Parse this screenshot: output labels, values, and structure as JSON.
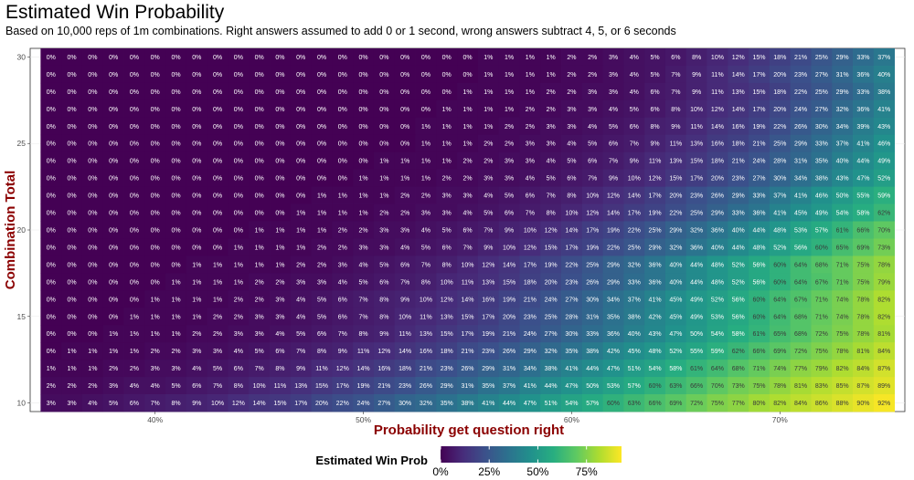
{
  "chart_data": {
    "type": "heatmap",
    "title": "Estimated Win Probability",
    "subtitle": "Based on 10,000 reps of 1m combinations. Right answers assumed to add 0 or 1 second, wrong answers subtract 4, 5, or 6 seconds",
    "xlabel": "Probability get question right",
    "ylabel": "Combination Total",
    "x": [
      0.35,
      0.36,
      0.37,
      0.38,
      0.39,
      0.4,
      0.41,
      0.42,
      0.43,
      0.44,
      0.45,
      0.46,
      0.47,
      0.48,
      0.49,
      0.5,
      0.51,
      0.52,
      0.53,
      0.54,
      0.55,
      0.56,
      0.57,
      0.58,
      0.59,
      0.6,
      0.61,
      0.62,
      0.63,
      0.64,
      0.65,
      0.66,
      0.67,
      0.68,
      0.69,
      0.7,
      0.71,
      0.72,
      0.73,
      0.74,
      0.75
    ],
    "y": [
      30,
      29,
      28,
      27,
      26,
      25,
      24,
      23,
      22,
      21,
      20,
      19,
      18,
      17,
      16,
      15,
      14,
      13,
      12,
      11,
      10
    ],
    "x_ticks": [
      {
        "value": 0.4,
        "label": "40%"
      },
      {
        "value": 0.5,
        "label": "50%"
      },
      {
        "value": 0.6,
        "label": "60%"
      },
      {
        "value": 0.7,
        "label": "70%"
      }
    ],
    "y_ticks": [
      {
        "value": 10,
        "label": "10"
      },
      {
        "value": 15,
        "label": "15"
      },
      {
        "value": 20,
        "label": "20"
      },
      {
        "value": 25,
        "label": "25"
      },
      {
        "value": 30,
        "label": "30"
      }
    ],
    "xlim": [
      0.34,
      0.76
    ],
    "ylim": [
      9.5,
      30.5
    ],
    "grid": true,
    "colormap": "viridis",
    "value_range": [
      0,
      93
    ],
    "values": [
      [
        0,
        0,
        0,
        0,
        0,
        0,
        0,
        0,
        0,
        0,
        0,
        0,
        0,
        0,
        0,
        0,
        0,
        0,
        0,
        0,
        0,
        1,
        1,
        1,
        1,
        2,
        2,
        3,
        4,
        5,
        6,
        8,
        10,
        12,
        15,
        18,
        21,
        25,
        29,
        33,
        37
      ],
      [
        0,
        0,
        0,
        0,
        0,
        0,
        0,
        0,
        0,
        0,
        0,
        0,
        0,
        0,
        0,
        0,
        0,
        0,
        0,
        0,
        0,
        1,
        1,
        1,
        1,
        2,
        2,
        3,
        4,
        5,
        7,
        9,
        11,
        14,
        17,
        20,
        23,
        27,
        31,
        36,
        40
      ],
      [
        0,
        0,
        0,
        0,
        0,
        0,
        0,
        0,
        0,
        0,
        0,
        0,
        0,
        0,
        0,
        0,
        0,
        0,
        0,
        0,
        1,
        1,
        1,
        1,
        2,
        2,
        3,
        3,
        4,
        6,
        7,
        9,
        11,
        13,
        15,
        18,
        22,
        25,
        29,
        33,
        38
      ],
      [
        0,
        0,
        0,
        0,
        0,
        0,
        0,
        0,
        0,
        0,
        0,
        0,
        0,
        0,
        0,
        0,
        0,
        0,
        0,
        1,
        1,
        1,
        1,
        2,
        2,
        3,
        3,
        4,
        5,
        6,
        8,
        10,
        12,
        14,
        17,
        20,
        24,
        27,
        32,
        36,
        41
      ],
      [
        0,
        0,
        0,
        0,
        0,
        0,
        0,
        0,
        0,
        0,
        0,
        0,
        0,
        0,
        0,
        0,
        0,
        0,
        1,
        1,
        1,
        1,
        2,
        2,
        3,
        3,
        4,
        5,
        6,
        8,
        9,
        11,
        14,
        16,
        19,
        22,
        26,
        30,
        34,
        39,
        43
      ],
      [
        0,
        0,
        0,
        0,
        0,
        0,
        0,
        0,
        0,
        0,
        0,
        0,
        0,
        0,
        0,
        0,
        0,
        0,
        1,
        1,
        1,
        2,
        2,
        3,
        3,
        4,
        5,
        6,
        7,
        9,
        11,
        13,
        16,
        18,
        21,
        25,
        29,
        33,
        37,
        41,
        46
      ],
      [
        0,
        0,
        0,
        0,
        0,
        0,
        0,
        0,
        0,
        0,
        0,
        0,
        0,
        0,
        0,
        0,
        1,
        1,
        1,
        1,
        2,
        2,
        3,
        3,
        4,
        5,
        6,
        7,
        9,
        11,
        13,
        15,
        18,
        21,
        24,
        28,
        31,
        35,
        40,
        44,
        49
      ],
      [
        0,
        0,
        0,
        0,
        0,
        0,
        0,
        0,
        0,
        0,
        0,
        0,
        0,
        0,
        0,
        1,
        1,
        1,
        1,
        2,
        2,
        3,
        3,
        4,
        5,
        6,
        7,
        9,
        10,
        12,
        15,
        17,
        20,
        23,
        27,
        30,
        34,
        38,
        43,
        47,
        52
      ],
      [
        0,
        0,
        0,
        0,
        0,
        0,
        0,
        0,
        0,
        0,
        0,
        0,
        0,
        1,
        1,
        1,
        1,
        2,
        2,
        3,
        3,
        4,
        5,
        6,
        7,
        8,
        10,
        12,
        14,
        17,
        20,
        23,
        26,
        29,
        33,
        37,
        41,
        46,
        50,
        55,
        59
      ],
      [
        0,
        0,
        0,
        0,
        0,
        0,
        0,
        0,
        0,
        0,
        0,
        0,
        1,
        1,
        1,
        1,
        2,
        2,
        3,
        3,
        4,
        5,
        6,
        7,
        8,
        10,
        12,
        14,
        17,
        19,
        22,
        25,
        29,
        33,
        36,
        41,
        45,
        49,
        54,
        58,
        62
      ],
      [
        0,
        0,
        0,
        0,
        0,
        0,
        0,
        0,
        0,
        0,
        1,
        1,
        1,
        1,
        2,
        2,
        3,
        3,
        4,
        5,
        6,
        7,
        9,
        10,
        12,
        14,
        17,
        19,
        22,
        25,
        29,
        32,
        36,
        40,
        44,
        48,
        53,
        57,
        61,
        66,
        70
      ],
      [
        0,
        0,
        0,
        0,
        0,
        0,
        0,
        0,
        0,
        1,
        1,
        1,
        1,
        2,
        2,
        3,
        3,
        4,
        5,
        6,
        7,
        9,
        10,
        12,
        15,
        17,
        19,
        22,
        25,
        29,
        32,
        36,
        40,
        44,
        48,
        52,
        56,
        60,
        65,
        69,
        73
      ],
      [
        0,
        0,
        0,
        0,
        0,
        0,
        0,
        1,
        1,
        1,
        1,
        1,
        2,
        2,
        3,
        4,
        5,
        6,
        7,
        8,
        10,
        12,
        14,
        17,
        19,
        22,
        25,
        29,
        32,
        36,
        40,
        44,
        48,
        52,
        56,
        60,
        64,
        68,
        71,
        75,
        78
      ],
      [
        0,
        0,
        0,
        0,
        0,
        0,
        1,
        1,
        1,
        1,
        2,
        2,
        3,
        3,
        4,
        5,
        6,
        7,
        8,
        10,
        11,
        13,
        15,
        18,
        20,
        23,
        26,
        29,
        33,
        36,
        40,
        44,
        48,
        52,
        56,
        60,
        64,
        67,
        71,
        75,
        79
      ],
      [
        0,
        0,
        0,
        0,
        0,
        1,
        1,
        1,
        1,
        2,
        2,
        3,
        4,
        5,
        6,
        7,
        8,
        9,
        10,
        12,
        14,
        16,
        19,
        21,
        24,
        27,
        30,
        34,
        37,
        41,
        45,
        49,
        52,
        56,
        60,
        64,
        67,
        71,
        74,
        78,
        82
      ],
      [
        0,
        0,
        0,
        0,
        1,
        1,
        1,
        1,
        2,
        2,
        3,
        3,
        4,
        5,
        6,
        7,
        8,
        10,
        11,
        13,
        15,
        17,
        20,
        23,
        25,
        28,
        31,
        35,
        38,
        42,
        45,
        49,
        53,
        56,
        60,
        64,
        68,
        71,
        74,
        78,
        82
      ],
      [
        0,
        0,
        0,
        1,
        1,
        1,
        1,
        2,
        2,
        3,
        3,
        4,
        5,
        6,
        7,
        8,
        9,
        11,
        13,
        15,
        17,
        19,
        21,
        24,
        27,
        30,
        33,
        36,
        40,
        43,
        47,
        50,
        54,
        58,
        61,
        65,
        68,
        72,
        75,
        78,
        81
      ],
      [
        0,
        1,
        1,
        1,
        1,
        2,
        2,
        3,
        3,
        4,
        5,
        6,
        7,
        8,
        9,
        11,
        12,
        14,
        16,
        18,
        21,
        23,
        26,
        29,
        32,
        35,
        38,
        42,
        45,
        48,
        52,
        55,
        59,
        62,
        66,
        69,
        72,
        75,
        78,
        81,
        84
      ],
      [
        1,
        1,
        1,
        2,
        2,
        3,
        3,
        4,
        5,
        6,
        7,
        8,
        9,
        11,
        12,
        14,
        16,
        18,
        21,
        23,
        26,
        29,
        31,
        34,
        38,
        41,
        44,
        47,
        51,
        54,
        58,
        61,
        64,
        68,
        71,
        74,
        77,
        79,
        82,
        84,
        87
      ],
      [
        2,
        2,
        2,
        3,
        4,
        4,
        5,
        6,
        7,
        8,
        10,
        11,
        13,
        15,
        17,
        19,
        21,
        23,
        26,
        29,
        31,
        35,
        37,
        41,
        44,
        47,
        50,
        53,
        57,
        60,
        63,
        66,
        70,
        73,
        75,
        78,
        81,
        83,
        85,
        87,
        89
      ],
      [
        3,
        3,
        4,
        5,
        6,
        7,
        8,
        9,
        10,
        12,
        14,
        15,
        17,
        20,
        22,
        24,
        27,
        30,
        32,
        35,
        38,
        41,
        44,
        47,
        51,
        54,
        57,
        60,
        63,
        66,
        69,
        72,
        75,
        77,
        80,
        82,
        84,
        86,
        88,
        90,
        92
      ]
    ],
    "labels": {
      "format": "percent"
    },
    "legend": {
      "title": "Estimated Win Prob",
      "position": "bottom",
      "ticks": [
        {
          "value": 0,
          "label": "0%"
        },
        {
          "value": 25,
          "label": "25%"
        },
        {
          "value": 50,
          "label": "50%"
        },
        {
          "value": 75,
          "label": "75%"
        }
      ]
    }
  }
}
